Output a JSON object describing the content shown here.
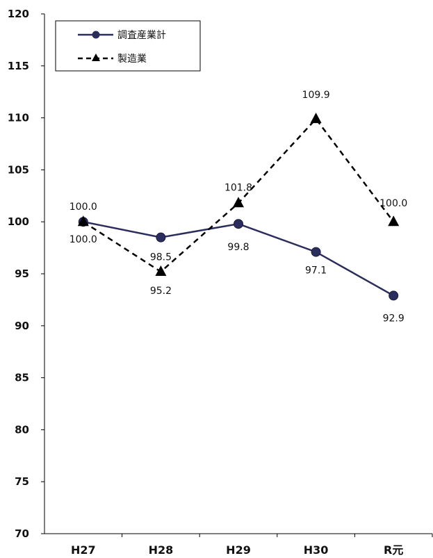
{
  "chart_data": {
    "type": "line",
    "categories": [
      "H27",
      "H28",
      "H29",
      "H30",
      "R元"
    ],
    "ylim": [
      70,
      120
    ],
    "yticks": [
      70,
      75,
      80,
      85,
      90,
      95,
      100,
      105,
      110,
      115,
      120
    ],
    "grid": false,
    "legend_position": "top-left",
    "series": [
      {
        "name": "調査産業計",
        "values": [
          100.0,
          98.5,
          99.8,
          97.1,
          92.9
        ],
        "labels": [
          "100.0",
          "98.5",
          "99.8",
          "97.1",
          "92.9"
        ],
        "color": "#2b2d5c",
        "line_style": "solid",
        "marker": "circle"
      },
      {
        "name": "製造業",
        "values": [
          100.0,
          95.2,
          101.8,
          109.9,
          100.0
        ],
        "labels": [
          "100.0",
          "95.2",
          "101.8",
          "109.9",
          "100.0"
        ],
        "color": "#000000",
        "line_style": "dashed",
        "marker": "triangle"
      }
    ]
  }
}
